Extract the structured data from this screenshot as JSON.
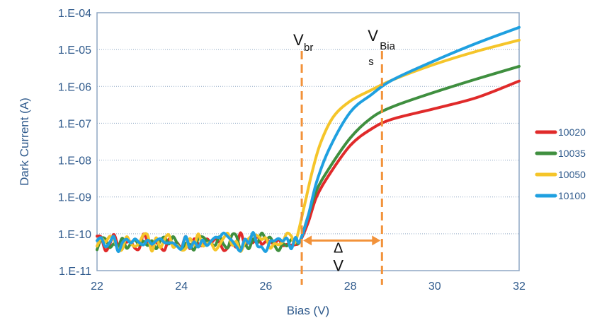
{
  "chart_data": {
    "type": "line",
    "title": "",
    "xlabel": "Bias (V)",
    "ylabel": "Dark Current (A)",
    "xlim": [
      22,
      32
    ],
    "ylim_log10": [
      -11,
      -4
    ],
    "y_scale": "log",
    "grid": "horizontal dotted",
    "legend_position": "right",
    "x_ticks": [
      22,
      24,
      26,
      28,
      30,
      32
    ],
    "x_tick_labels": [
      "22",
      "24",
      "26",
      "28",
      "30",
      "32"
    ],
    "y_ticks_log10": [
      -11,
      -10,
      -9,
      -8,
      -7,
      -6,
      -5,
      -4
    ],
    "y_tick_labels": [
      "1.E-11",
      "1.E-10",
      "1.E-09",
      "1.E-08",
      "1.E-07",
      "1.E-06",
      "1.E-05",
      "1.E-04"
    ],
    "series": [
      {
        "name": "10020",
        "color": "#e02a2a",
        "x": [
          26.8,
          27.0,
          27.2,
          27.5,
          28.0,
          28.5,
          29.0,
          30.0,
          31.0,
          32.0
        ],
        "y": [
          6e-11,
          2e-10,
          1e-09,
          4e-09,
          2.5e-08,
          7e-08,
          1.3e-07,
          2.5e-07,
          5e-07,
          1.4e-06
        ]
      },
      {
        "name": "10035",
        "color": "#3f8f3f",
        "x": [
          26.8,
          27.0,
          27.2,
          27.5,
          28.0,
          28.5,
          29.0,
          30.0,
          31.0,
          32.0
        ],
        "y": [
          6e-11,
          3e-10,
          1.5e-09,
          6e-09,
          4e-08,
          1.4e-07,
          2.8e-07,
          7e-07,
          1.6e-06,
          3.5e-06
        ]
      },
      {
        "name": "10050",
        "color": "#f5c52a",
        "x": [
          26.7,
          26.9,
          27.1,
          27.3,
          27.6,
          28.0,
          28.5,
          29.0,
          30.0,
          31.0,
          32.0
        ],
        "y": [
          6e-11,
          5e-10,
          5e-09,
          3e-08,
          1.5e-07,
          4e-07,
          8e-07,
          1.5e-06,
          4e-06,
          9e-06,
          1.8e-05
        ]
      },
      {
        "name": "10100",
        "color": "#1fa0e0",
        "x": [
          26.8,
          27.0,
          27.2,
          27.5,
          28.0,
          28.5,
          29.0,
          30.0,
          31.0,
          32.0
        ],
        "y": [
          6e-11,
          3e-10,
          2.5e-09,
          2e-08,
          2e-07,
          6e-07,
          1.5e-06,
          5e-06,
          1.5e-05,
          4e-05
        ]
      }
    ],
    "noise_floor_range_x": [
      22,
      26.8
    ],
    "noise_floor_level": 6e-11,
    "annotations": {
      "vbr_x": 26.85,
      "vbias_x": 28.75,
      "marker_color": "#f2923a",
      "vbr_label_main": "V",
      "vbr_label_sub": "br",
      "vbias_label_main": "V",
      "vbias_label_sub1": "Bia",
      "vbias_label_sub2": "s",
      "delta_arrow_y": 6e-11,
      "delta_label_1": "Δ",
      "delta_label_2": "V"
    },
    "colors": {
      "axis_text": "#2f5a8c",
      "axis_line": "#8fa7c4",
      "grid": "#8fa7c4"
    }
  }
}
